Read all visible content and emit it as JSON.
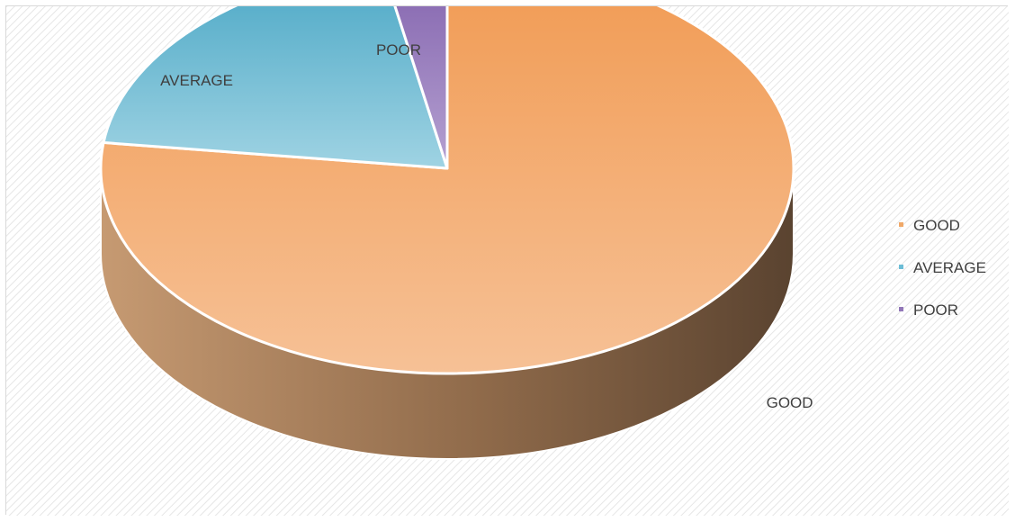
{
  "chart_data": {
    "type": "pie",
    "style": "3d",
    "categories": [
      "GOOD",
      "AVERAGE",
      "POOR"
    ],
    "values": [
      77,
      20,
      3
    ],
    "colors": [
      "#f0a868",
      "#6cbdd6",
      "#9277b8"
    ],
    "side_colors": [
      "#a8784e",
      "#4f8ea1",
      "#6a548a"
    ],
    "data_labels": [
      "GOOD",
      "AVERAGE",
      "POOR"
    ],
    "legend": {
      "position": "right",
      "entries": [
        "GOOD",
        "AVERAGE",
        "POOR"
      ]
    },
    "title": "",
    "background": "diagonal-hatch"
  }
}
